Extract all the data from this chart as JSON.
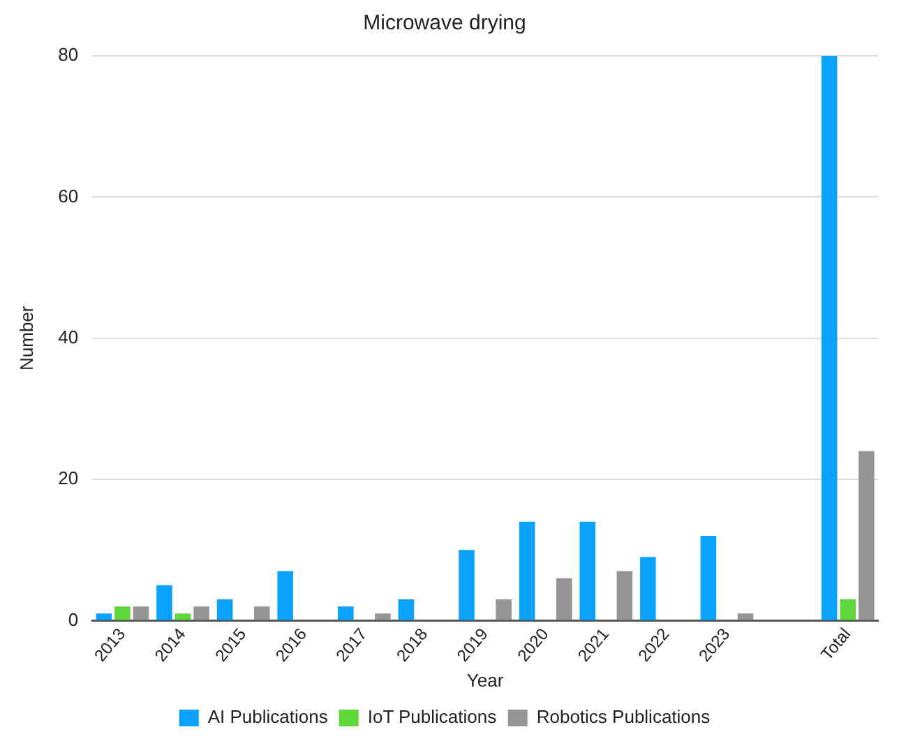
{
  "chart_data": {
    "type": "bar",
    "title": "Microwave drying",
    "xlabel": "Year",
    "ylabel": "Number",
    "categories": [
      "2013",
      "2014",
      "2015",
      "2016",
      "2017",
      "2018",
      "2019",
      "2020",
      "2021",
      "2022",
      "2023",
      null,
      "Total"
    ],
    "series": [
      {
        "name": "AI Publications",
        "color": "#0aa2fa",
        "values": [
          1,
          5,
          3,
          7,
          2,
          3,
          10,
          14,
          14,
          9,
          12,
          null,
          80
        ]
      },
      {
        "name": "IoT Publications",
        "color": "#5fd83c",
        "values": [
          2,
          1,
          0,
          0,
          0,
          0,
          0,
          0,
          0,
          0,
          0,
          null,
          3
        ]
      },
      {
        "name": "Robotics Publications",
        "color": "#959595",
        "values": [
          2,
          2,
          2,
          0,
          1,
          0,
          3,
          6,
          7,
          0,
          1,
          null,
          24
        ]
      }
    ],
    "ylim": [
      0,
      80
    ],
    "yticks": [
      0,
      20,
      40,
      60,
      80
    ],
    "grid": "y",
    "legend": "bottom"
  }
}
